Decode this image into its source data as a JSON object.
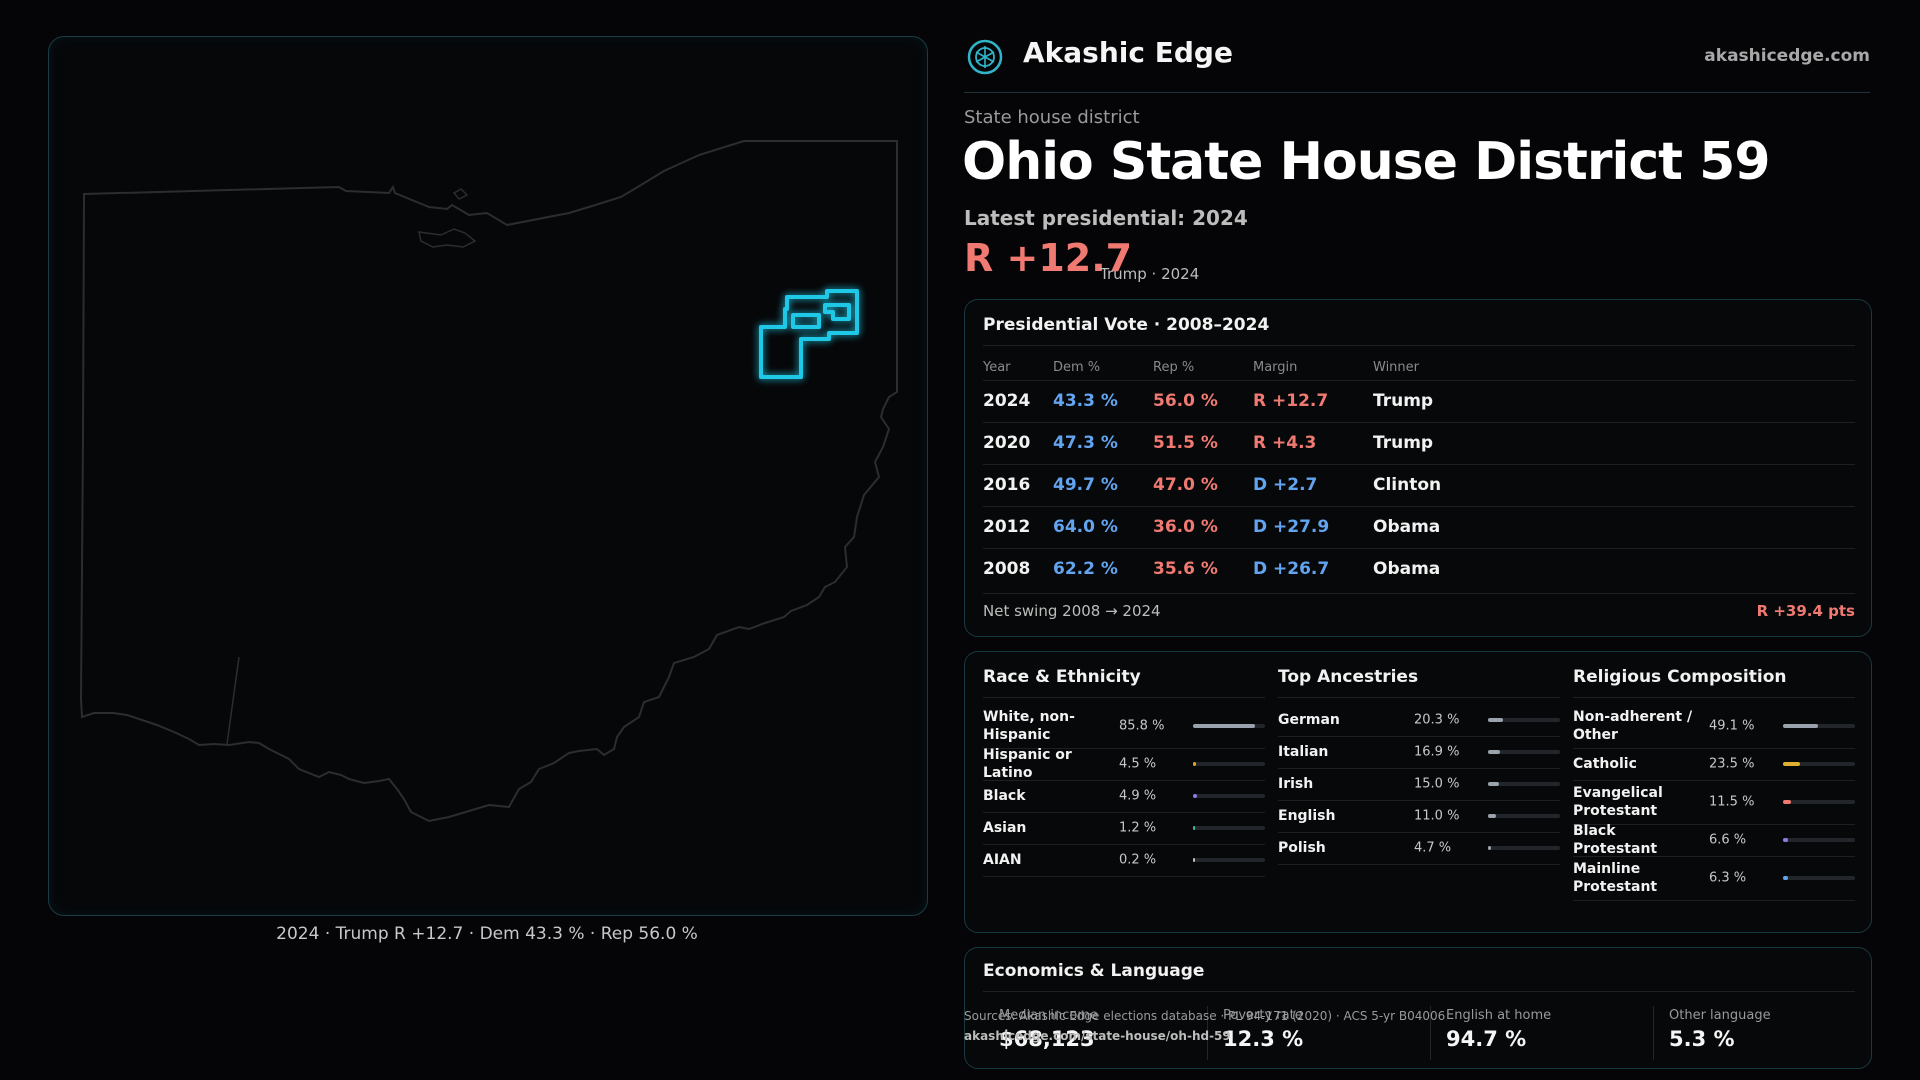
{
  "header": {
    "brand": "Akashic Edge",
    "site": "akashicedge.com",
    "kicker": "State house district",
    "title": "Ohio State House District 59",
    "latest_label": "Latest presidential: 2024",
    "margin": "R +12.7",
    "margin_sub": "Trump · 2024"
  },
  "map": {
    "caption": "2024 · Trump R +12.7 · Dem 43.3 % · Rep 56.0 %",
    "highlight_color": "#1fc8e6"
  },
  "presidential": {
    "title": "Presidential Vote · 2008–2024",
    "columns": [
      "Year",
      "Dem %",
      "Rep %",
      "Margin",
      "Winner"
    ],
    "rows": [
      {
        "year": "2024",
        "dem": "43.3 %",
        "rep": "56.0 %",
        "margin": "R +12.7",
        "winner": "Trump",
        "party": "R"
      },
      {
        "year": "2020",
        "dem": "47.3 %",
        "rep": "51.5 %",
        "margin": "R +4.3",
        "winner": "Trump",
        "party": "R"
      },
      {
        "year": "2016",
        "dem": "49.7 %",
        "rep": "47.0 %",
        "margin": "D +2.7",
        "winner": "Clinton",
        "party": "D"
      },
      {
        "year": "2012",
        "dem": "64.0 %",
        "rep": "36.0 %",
        "margin": "D +27.9",
        "winner": "Obama",
        "party": "D"
      },
      {
        "year": "2008",
        "dem": "62.2 %",
        "rep": "35.6 %",
        "margin": "D +26.7",
        "winner": "Obama",
        "party": "D"
      }
    ],
    "swing_label": "Net swing 2008 → 2024",
    "swing_value": "R +39.4 pts"
  },
  "race": {
    "title": "Race & Ethnicity",
    "rows": [
      {
        "label": "White, non-Hispanic",
        "value": "85.8 %",
        "pct": 85.8,
        "color": "#9aa3ad"
      },
      {
        "label": "Hispanic or Latino",
        "value": "4.5 %",
        "pct": 4.5,
        "color": "#e0a030"
      },
      {
        "label": "Black",
        "value": "4.9 %",
        "pct": 4.9,
        "color": "#8a7fe0"
      },
      {
        "label": "Asian",
        "value": "1.2 %",
        "pct": 1.2,
        "color": "#3bb89a"
      },
      {
        "label": "AIAN",
        "value": "0.2 %",
        "pct": 0.2,
        "color": "#c0c0c0"
      }
    ]
  },
  "ancestry": {
    "title": "Top Ancestries",
    "rows": [
      {
        "label": "German",
        "value": "20.3 %",
        "pct": 20.3,
        "color": "#9aa3ad"
      },
      {
        "label": "Italian",
        "value": "16.9 %",
        "pct": 16.9,
        "color": "#9aa3ad"
      },
      {
        "label": "Irish",
        "value": "15.0 %",
        "pct": 15.0,
        "color": "#9aa3ad"
      },
      {
        "label": "English",
        "value": "11.0 %",
        "pct": 11.0,
        "color": "#9aa3ad"
      },
      {
        "label": "Polish",
        "value": "4.7 %",
        "pct": 4.7,
        "color": "#9aa3ad"
      }
    ]
  },
  "religion": {
    "title": "Religious Composition",
    "rows": [
      {
        "label": "Non-adherent / Other",
        "value": "49.1 %",
        "pct": 49.1,
        "color": "#9aa3ad"
      },
      {
        "label": "Catholic",
        "value": "23.5 %",
        "pct": 23.5,
        "color": "#e0b030"
      },
      {
        "label": "Evangelical Protestant",
        "value": "11.5 %",
        "pct": 11.5,
        "color": "#f07a72"
      },
      {
        "label": "Black Protestant",
        "value": "6.6 %",
        "pct": 6.6,
        "color": "#8a7fe0"
      },
      {
        "label": "Mainline Protestant",
        "value": "6.3 %",
        "pct": 6.3,
        "color": "#63a4f0"
      }
    ]
  },
  "economics": {
    "title": "Economics & Language",
    "stats": [
      {
        "label": "Median income",
        "value": "$68,123"
      },
      {
        "label": "Poverty rate",
        "value": "12.3 %"
      },
      {
        "label": "English at home",
        "value": "94.7 %"
      },
      {
        "label": "Other language",
        "value": "5.3 %"
      }
    ]
  },
  "sources": {
    "line": "Sources: Akashic Edge elections database · PL 94-171 (2020) · ACS 5-yr B04006",
    "url": "akashicedge.com/state-house/oh-hd-59"
  }
}
